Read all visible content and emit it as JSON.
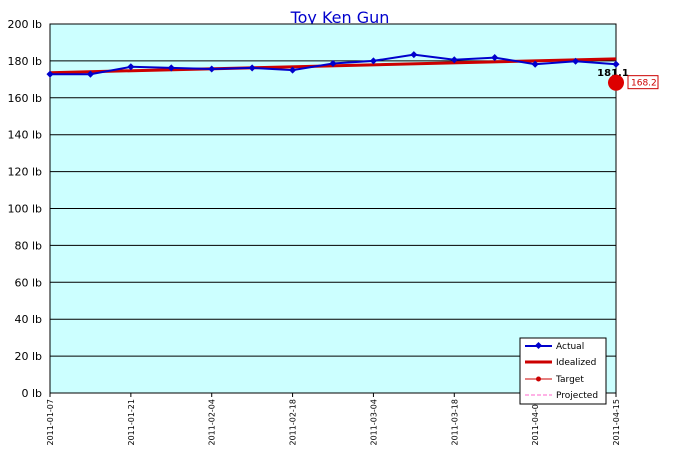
{
  "chart_data": {
    "type": "line",
    "title": "Toy Ken Gun",
    "y_unit": "lb",
    "ylim": [
      0,
      200
    ],
    "y_ticks": [
      "0 lb",
      "20 lb",
      "40 lb",
      "60 lb",
      "80 lb",
      "100 lb",
      "120 lb",
      "140 lb",
      "160 lb",
      "180 lb",
      "200 lb"
    ],
    "x_ticks": [
      "2011-01-07",
      "2011-01-21",
      "2011-02-04",
      "2011-02-18",
      "2011-03-04",
      "2011-03-18",
      "2011-04-01",
      "2011-04-15"
    ],
    "xlim": [
      "2011-01-07",
      "2011-04-15"
    ],
    "grid": true,
    "background_color": "#ccffff",
    "legend_position": "bottom-right",
    "series": [
      {
        "name": "Actual",
        "color": "#0000cc",
        "x": [
          "2011-01-07",
          "2011-01-14",
          "2011-01-21",
          "2011-01-28",
          "2011-02-04",
          "2011-02-11",
          "2011-02-18",
          "2011-02-25",
          "2011-03-04",
          "2011-03-11",
          "2011-03-18",
          "2011-03-25",
          "2011-04-01",
          "2011-04-08",
          "2011-04-15"
        ],
        "values": [
          172.8,
          172.8,
          176.8,
          176.2,
          175.6,
          176.2,
          175.0,
          178.6,
          180.0,
          183.4,
          180.6,
          181.8,
          178.2,
          179.8,
          178.2
        ]
      },
      {
        "name": "Idealized",
        "color": "#cc0000",
        "x": [
          "2011-01-07",
          "2011-04-15"
        ],
        "values": [
          173.6,
          181.1
        ]
      },
      {
        "name": "Target",
        "color": "#cc0000",
        "x": [],
        "values": []
      },
      {
        "name": "Projected",
        "color": "#ff66cc",
        "x": [],
        "values": []
      }
    ],
    "annotations": {
      "end_value_label": "181.1",
      "projected_point": {
        "x": "2011-04-15",
        "value": 168.2,
        "label": "168.2"
      }
    }
  }
}
